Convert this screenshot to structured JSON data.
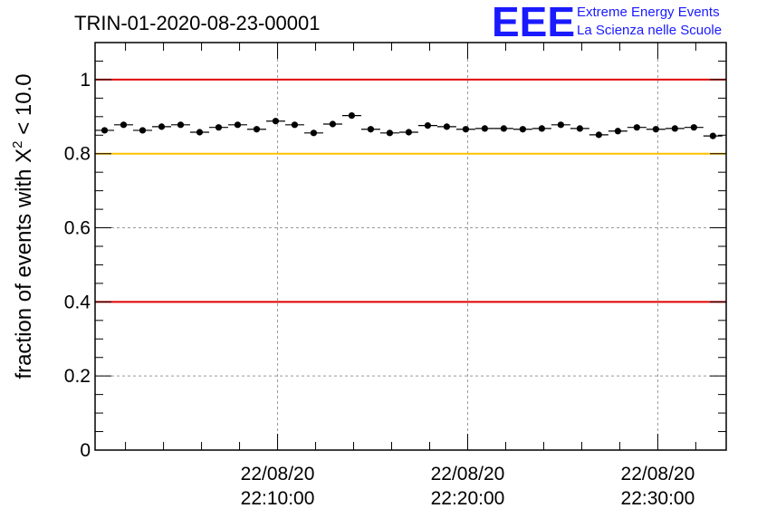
{
  "chart_data": {
    "type": "scatter",
    "title": "TRIN-01-2020-08-23-00001",
    "ylabel_prefix": "fraction of events with ",
    "ylabel_symbol": "X",
    "ylabel_sup": "2",
    "ylabel_suffix": " < 10.0",
    "logo": {
      "mark": "EEE",
      "line1": "Extreme Energy Events",
      "line2": "La Scienza nelle Scuole"
    },
    "ylim": [
      0,
      1.1
    ],
    "yticks": [
      {
        "value": 0,
        "label": "0"
      },
      {
        "value": 0.2,
        "label": "0.2"
      },
      {
        "value": 0.4,
        "label": "0.4"
      },
      {
        "value": 0.6,
        "label": "0.6"
      },
      {
        "value": 0.8,
        "label": "0.8"
      },
      {
        "value": 1,
        "label": "1"
      }
    ],
    "xlim_minutes": [
      0.4,
      33.6
    ],
    "xticks": [
      {
        "minute": 10,
        "date": "22/08/20",
        "time": "22:10:00"
      },
      {
        "minute": 20,
        "date": "22/08/20",
        "time": "22:20:00"
      },
      {
        "minute": 30,
        "date": "22/08/20",
        "time": "22:30:00"
      }
    ],
    "x_start_time": "22:00:00",
    "bin_width_minutes": 1,
    "grid": true,
    "reference_lines": [
      {
        "value": 1.0,
        "color": "#e00000"
      },
      {
        "value": 0.8,
        "color": "#ffc000"
      },
      {
        "value": 0.4,
        "color": "#e00000"
      }
    ],
    "points": [
      {
        "minute": 0.9,
        "y": 0.863
      },
      {
        "minute": 1.9,
        "y": 0.878
      },
      {
        "minute": 2.9,
        "y": 0.863
      },
      {
        "minute": 3.9,
        "y": 0.873
      },
      {
        "minute": 4.9,
        "y": 0.878
      },
      {
        "minute": 5.9,
        "y": 0.858
      },
      {
        "minute": 6.9,
        "y": 0.871
      },
      {
        "minute": 7.9,
        "y": 0.878
      },
      {
        "minute": 8.9,
        "y": 0.866
      },
      {
        "minute": 9.9,
        "y": 0.888
      },
      {
        "minute": 10.9,
        "y": 0.878
      },
      {
        "minute": 11.9,
        "y": 0.856
      },
      {
        "minute": 12.9,
        "y": 0.88
      },
      {
        "minute": 13.9,
        "y": 0.903
      },
      {
        "minute": 14.9,
        "y": 0.866
      },
      {
        "minute": 15.9,
        "y": 0.856
      },
      {
        "minute": 16.9,
        "y": 0.858
      },
      {
        "minute": 17.9,
        "y": 0.876
      },
      {
        "minute": 18.9,
        "y": 0.873
      },
      {
        "minute": 19.9,
        "y": 0.866
      },
      {
        "minute": 20.9,
        "y": 0.868
      },
      {
        "minute": 21.9,
        "y": 0.868
      },
      {
        "minute": 22.9,
        "y": 0.866
      },
      {
        "minute": 23.9,
        "y": 0.868
      },
      {
        "minute": 24.9,
        "y": 0.878
      },
      {
        "minute": 25.9,
        "y": 0.868
      },
      {
        "minute": 26.9,
        "y": 0.851
      },
      {
        "minute": 27.9,
        "y": 0.861
      },
      {
        "minute": 28.9,
        "y": 0.871
      },
      {
        "minute": 29.9,
        "y": 0.866
      },
      {
        "minute": 30.9,
        "y": 0.868
      },
      {
        "minute": 31.9,
        "y": 0.871
      },
      {
        "minute": 32.9,
        "y": 0.848
      }
    ],
    "marker_color": "#000000"
  }
}
